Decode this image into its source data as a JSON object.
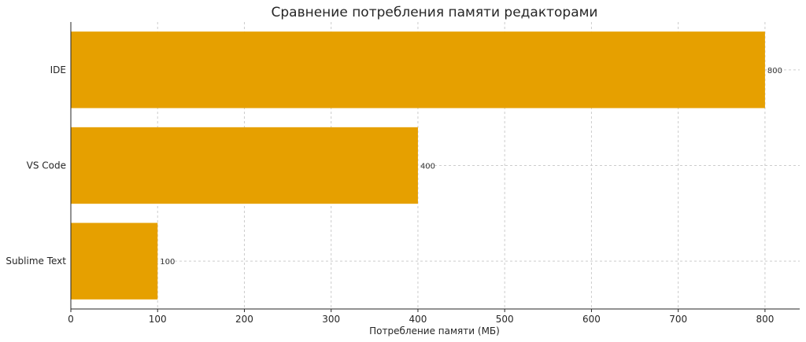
{
  "chart_data": {
    "type": "bar",
    "orientation": "horizontal",
    "title": "Сравнение потребления памяти редакторами",
    "xlabel": "Потребление памяти (МБ)",
    "ylabel": "",
    "categories": [
      "IDE",
      "VS Code",
      "Sublime Text"
    ],
    "values": [
      800,
      400,
      100
    ],
    "data_labels": [
      "800",
      "400",
      "100"
    ],
    "xlim": [
      0,
      840
    ],
    "xticks": [
      0,
      100,
      200,
      300,
      400,
      500,
      600,
      700,
      800
    ],
    "grid": true,
    "bar_color": "#E6A000"
  }
}
